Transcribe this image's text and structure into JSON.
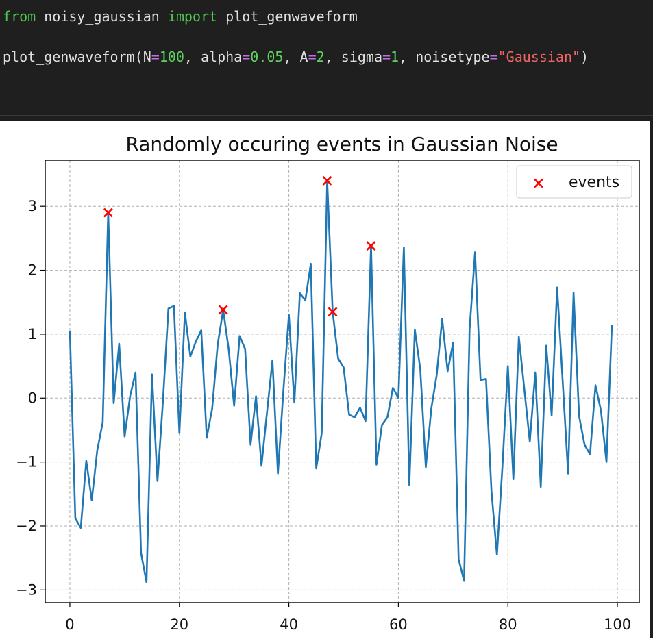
{
  "code": {
    "line1": {
      "kw1": "from",
      "mod": " noisy_gaussian ",
      "kw2": "import",
      "fn": " plot_genwaveform"
    },
    "line2": {
      "call": "plot_genwaveform(",
      "p1": "N",
      "v1": "100",
      "sep1": ", ",
      "p2": "alpha",
      "v2": "0.05",
      "sep2": ", ",
      "p3": "A",
      "v3": "2",
      "sep3": ", ",
      "p4": "sigma",
      "v4": "1",
      "sep4": ", ",
      "p5": "noisetype",
      "v5": "\"Gaussian\"",
      "close": ")",
      "eq": "="
    }
  },
  "chart_data": {
    "type": "line",
    "title": "Randomly occuring events in Gaussian Noise",
    "xlim": [
      -4.5,
      104
    ],
    "ylim": [
      -3.2,
      3.72
    ],
    "xticks": [
      0,
      20,
      40,
      60,
      80,
      100
    ],
    "yticks": [
      -3,
      -2,
      -1,
      0,
      1,
      2,
      3
    ],
    "grid": true,
    "legend": "top-right",
    "series": [
      {
        "type": "line",
        "color": "#1f77b4",
        "x": [
          0,
          1,
          2,
          3,
          4,
          5,
          6,
          7,
          8,
          9,
          10,
          11,
          12,
          13,
          14,
          15,
          16,
          17,
          18,
          19,
          20,
          21,
          22,
          23,
          24,
          25,
          26,
          27,
          28,
          29,
          30,
          31,
          32,
          33,
          34,
          35,
          36,
          37,
          38,
          39,
          40,
          41,
          42,
          43,
          44,
          45,
          46,
          47,
          48,
          49,
          50,
          51,
          52,
          53,
          54,
          55,
          56,
          57,
          58,
          59,
          60,
          61,
          62,
          63,
          64,
          65,
          66,
          67,
          68,
          69,
          70,
          71,
          72,
          73,
          74,
          75,
          76,
          77,
          78,
          79,
          80,
          81,
          82,
          83,
          84,
          85,
          86,
          87,
          88,
          89,
          90,
          91,
          92,
          93,
          94,
          95,
          96,
          97,
          98,
          99
        ],
        "values": [
          1.05,
          -1.88,
          -2.03,
          -0.98,
          -1.6,
          -0.82,
          -0.38,
          2.9,
          -0.08,
          0.85,
          -0.6,
          0.03,
          0.4,
          -2.42,
          -2.88,
          0.37,
          -1.3,
          -0.05,
          1.4,
          1.44,
          -0.55,
          1.34,
          0.65,
          0.88,
          1.06,
          -0.62,
          -0.16,
          0.84,
          1.38,
          0.77,
          -0.12,
          0.97,
          0.77,
          -0.73,
          0.03,
          -1.06,
          -0.23,
          0.59,
          -1.18,
          0.12,
          1.3,
          -0.07,
          1.64,
          1.53,
          2.1,
          -1.1,
          -0.55,
          3.4,
          1.35,
          0.62,
          0.48,
          -0.26,
          -0.3,
          -0.15,
          -0.36,
          2.38,
          -1.04,
          -0.42,
          -0.3,
          0.16,
          0.0,
          2.36,
          -1.36,
          1.07,
          0.45,
          -1.08,
          -0.17,
          0.36,
          1.24,
          0.42,
          0.87,
          -2.52,
          -2.86,
          1.07,
          2.28,
          0.28,
          0.3,
          -1.45,
          -2.45,
          -1.08,
          0.5,
          -1.27,
          0.96,
          0.14,
          -0.68,
          0.4,
          -1.39,
          0.82,
          -0.27,
          1.73,
          0.28,
          -1.18,
          1.65,
          -0.28,
          -0.73,
          -0.88,
          0.2,
          -0.2,
          -1.0,
          1.14
        ]
      },
      {
        "type": "scatter",
        "name": "events",
        "marker": "x",
        "color": "#ff0000",
        "x": [
          7,
          28,
          47,
          48,
          55
        ],
        "values": [
          2.9,
          1.38,
          3.4,
          1.35,
          2.38
        ]
      }
    ]
  }
}
